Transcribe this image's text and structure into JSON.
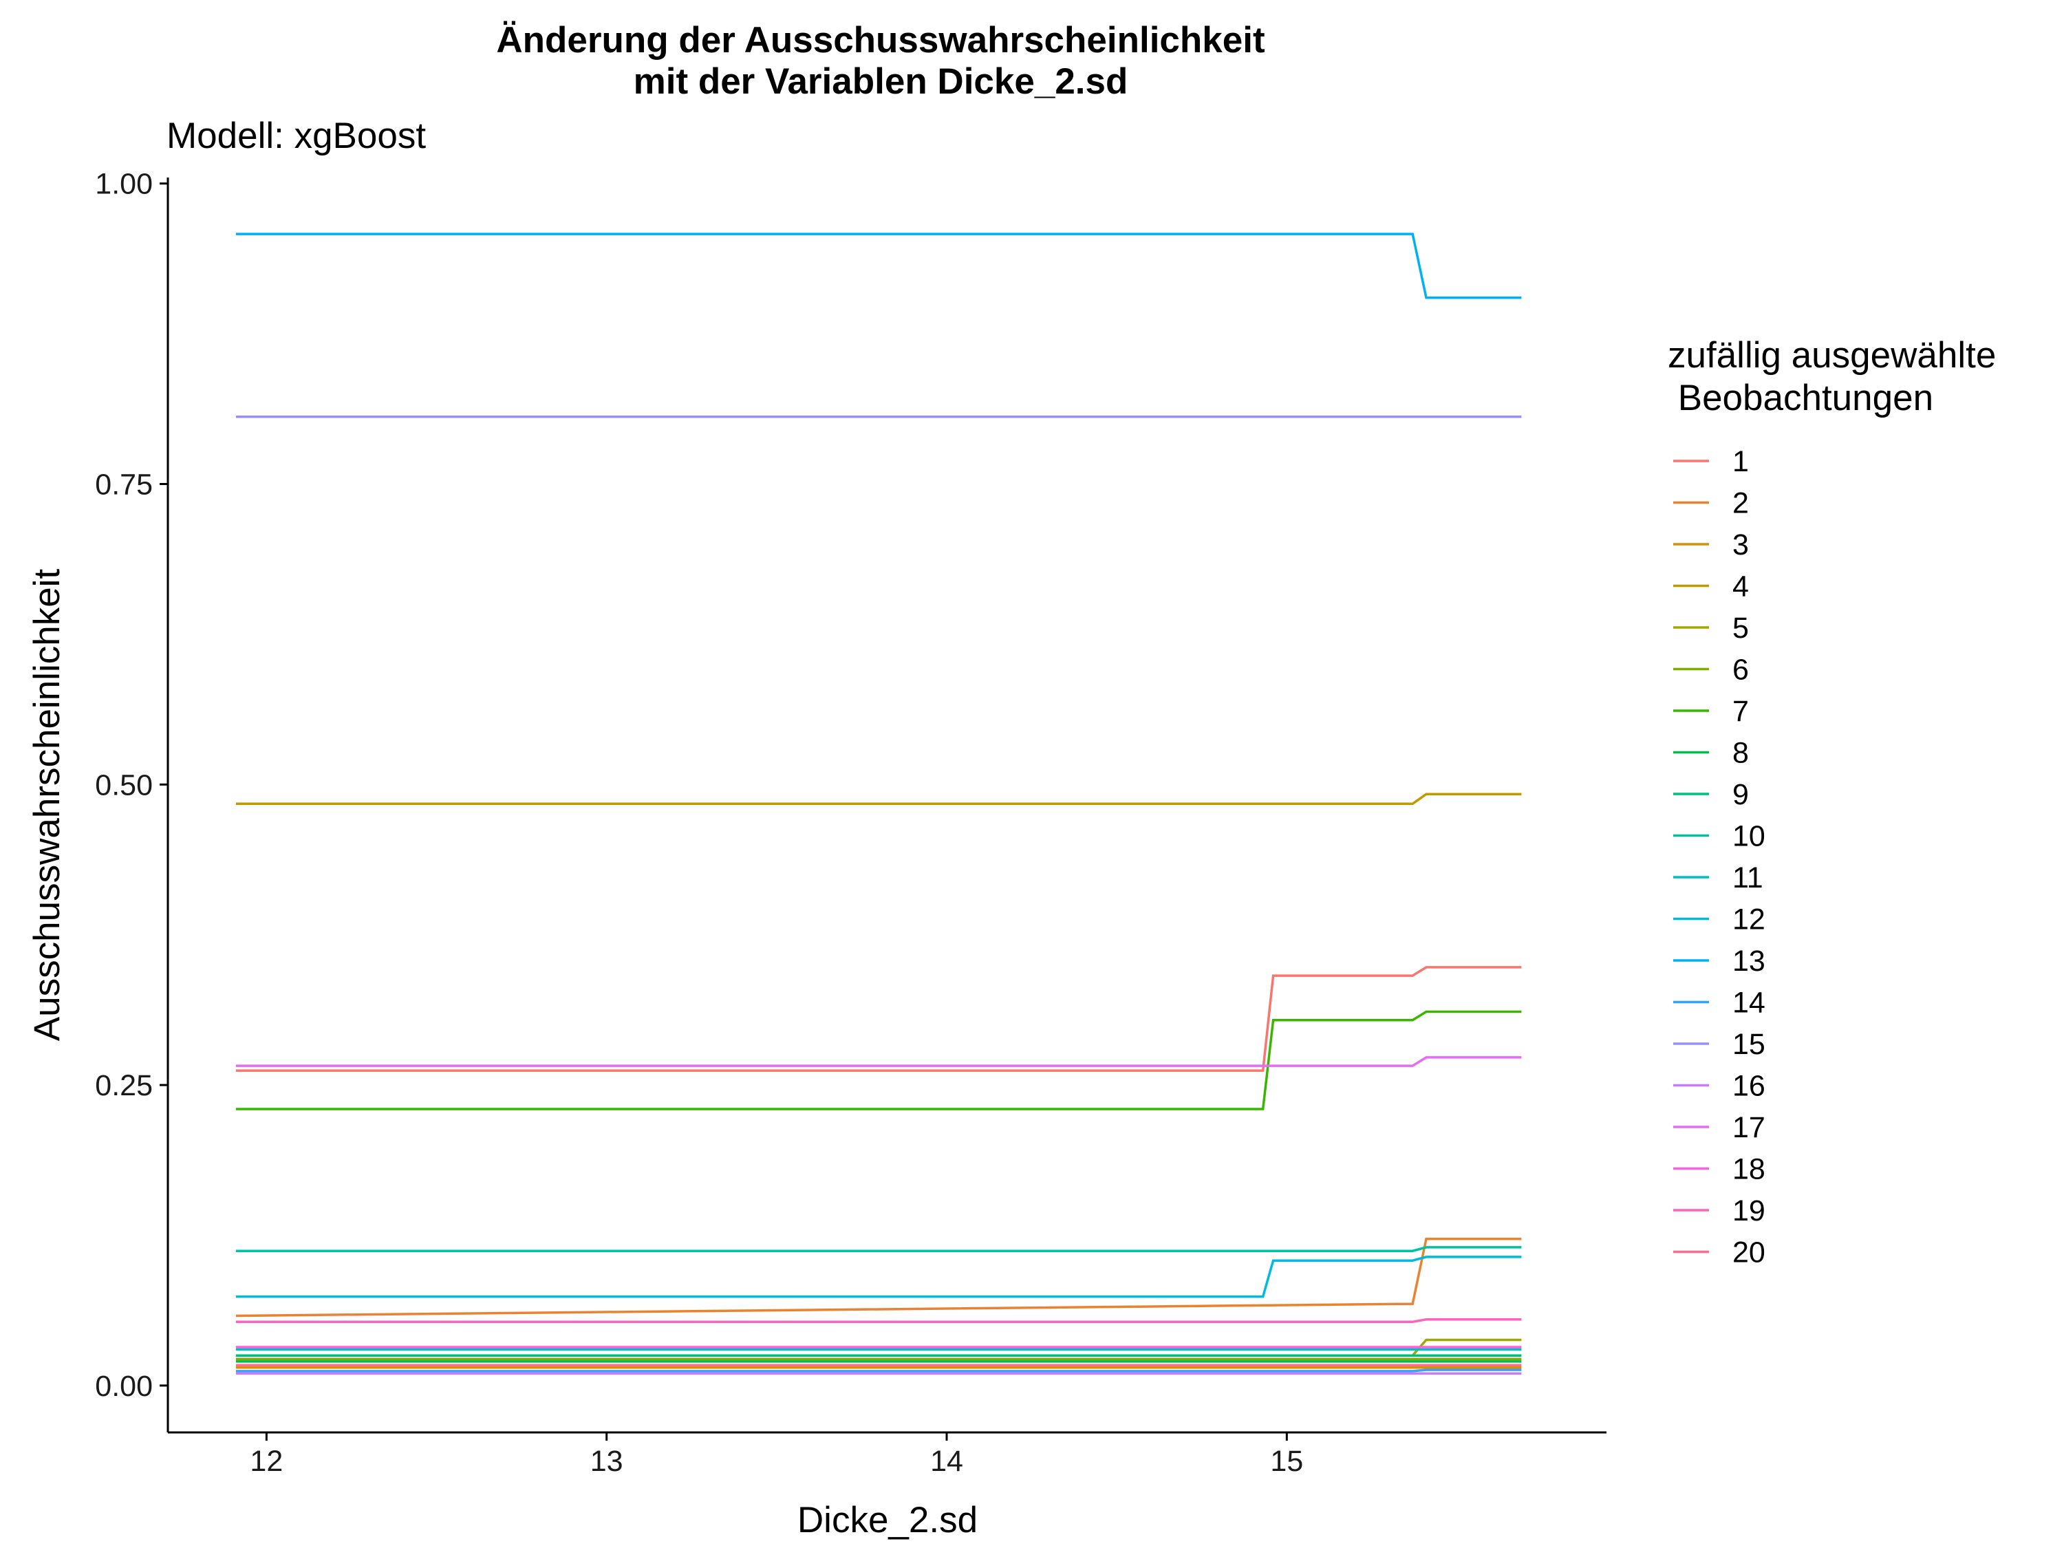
{
  "chart_data": {
    "type": "line",
    "title_line1": "Änderung der Ausschusswahrscheinlichkeit",
    "title_line2": "mit der Variablen Dicke_2.sd",
    "subtitle": "Modell: xgBoost",
    "xlabel": "Dicke_2.sd",
    "ylabel": "Ausschusswahrscheinlichkeit",
    "xlim": [
      11.71,
      15.94
    ],
    "ylim": [
      -0.039,
      1.005
    ],
    "x_ticks": [
      12,
      13,
      14,
      15
    ],
    "x_tick_labels": [
      "12",
      "13",
      "14",
      "15"
    ],
    "y_ticks": [
      0,
      0.25,
      0.5,
      0.75,
      1.0
    ],
    "y_tick_labels": [
      "0.00",
      "0.25",
      "0.50",
      "0.75",
      "1.00"
    ],
    "grid": false,
    "legend_title_line1": "zufällig ausgewählte",
    "legend_title_line2": " Beobachtungen",
    "legend_position": "right",
    "series": [
      {
        "name": "1",
        "color": "#F8766D",
        "points": [
          [
            11.91,
            0.262
          ],
          [
            14.93,
            0.262
          ],
          [
            14.96,
            0.341
          ],
          [
            15.37,
            0.341
          ],
          [
            15.41,
            0.348
          ],
          [
            15.69,
            0.348
          ]
        ]
      },
      {
        "name": "2",
        "color": "#EA8331",
        "points": [
          [
            11.91,
            0.058
          ],
          [
            15.37,
            0.068
          ],
          [
            15.41,
            0.122
          ],
          [
            15.69,
            0.122
          ]
        ]
      },
      {
        "name": "3",
        "color": "#D89000",
        "points": [
          [
            11.91,
            0.015
          ],
          [
            15.69,
            0.015
          ]
        ]
      },
      {
        "name": "4",
        "color": "#C09B00",
        "points": [
          [
            11.91,
            0.484
          ],
          [
            15.37,
            0.484
          ],
          [
            15.41,
            0.492
          ],
          [
            15.69,
            0.492
          ]
        ]
      },
      {
        "name": "5",
        "color": "#A3A500",
        "points": [
          [
            11.91,
            0.025
          ],
          [
            15.37,
            0.025
          ],
          [
            15.41,
            0.038
          ],
          [
            15.69,
            0.038
          ]
        ]
      },
      {
        "name": "6",
        "color": "#7CAE00",
        "points": [
          [
            11.91,
            0.022
          ],
          [
            15.69,
            0.022
          ]
        ]
      },
      {
        "name": "7",
        "color": "#39B600",
        "points": [
          [
            11.91,
            0.23
          ],
          [
            14.93,
            0.23
          ],
          [
            14.96,
            0.304
          ],
          [
            15.37,
            0.304
          ],
          [
            15.41,
            0.311
          ],
          [
            15.69,
            0.311
          ]
        ]
      },
      {
        "name": "8",
        "color": "#00BB4E",
        "points": [
          [
            11.91,
            0.02
          ],
          [
            15.69,
            0.02
          ]
        ]
      },
      {
        "name": "9",
        "color": "#00BF7D",
        "points": [
          [
            11.91,
            0.025
          ],
          [
            15.69,
            0.025
          ]
        ]
      },
      {
        "name": "10",
        "color": "#00C1A3",
        "points": [
          [
            11.91,
            0.112
          ],
          [
            15.37,
            0.112
          ],
          [
            15.41,
            0.115
          ],
          [
            15.69,
            0.115
          ]
        ]
      },
      {
        "name": "11",
        "color": "#00BFC4",
        "points": [
          [
            11.91,
            0.03
          ],
          [
            15.69,
            0.03
          ]
        ]
      },
      {
        "name": "12",
        "color": "#00BAE0",
        "points": [
          [
            11.91,
            0.074
          ],
          [
            14.93,
            0.074
          ],
          [
            14.96,
            0.104
          ],
          [
            15.37,
            0.104
          ],
          [
            15.41,
            0.107
          ],
          [
            15.69,
            0.107
          ]
        ]
      },
      {
        "name": "13",
        "color": "#00B0F6",
        "points": [
          [
            11.91,
            0.958
          ],
          [
            15.37,
            0.958
          ],
          [
            15.41,
            0.905
          ],
          [
            15.69,
            0.905
          ]
        ]
      },
      {
        "name": "14",
        "color": "#35A2FF",
        "points": [
          [
            11.91,
            0.012
          ],
          [
            15.37,
            0.012
          ],
          [
            15.41,
            0.013
          ],
          [
            15.69,
            0.013
          ]
        ]
      },
      {
        "name": "15",
        "color": "#9590FF",
        "points": [
          [
            11.91,
            0.806
          ],
          [
            15.69,
            0.806
          ]
        ]
      },
      {
        "name": "16",
        "color": "#C77CFF",
        "points": [
          [
            11.91,
            0.01
          ],
          [
            15.69,
            0.01
          ]
        ]
      },
      {
        "name": "17",
        "color": "#E76BF3",
        "points": [
          [
            11.91,
            0.266
          ],
          [
            15.37,
            0.266
          ],
          [
            15.41,
            0.273
          ],
          [
            15.69,
            0.273
          ]
        ]
      },
      {
        "name": "18",
        "color": "#FA62DB",
        "points": [
          [
            11.91,
            0.032
          ],
          [
            15.69,
            0.032
          ]
        ]
      },
      {
        "name": "19",
        "color": "#FF62BC",
        "points": [
          [
            11.91,
            0.053
          ],
          [
            15.37,
            0.053
          ],
          [
            15.41,
            0.055
          ],
          [
            15.69,
            0.055
          ]
        ]
      },
      {
        "name": "20",
        "color": "#FF6C91",
        "points": [
          [
            11.91,
            0.017
          ],
          [
            15.69,
            0.017
          ]
        ]
      }
    ]
  }
}
